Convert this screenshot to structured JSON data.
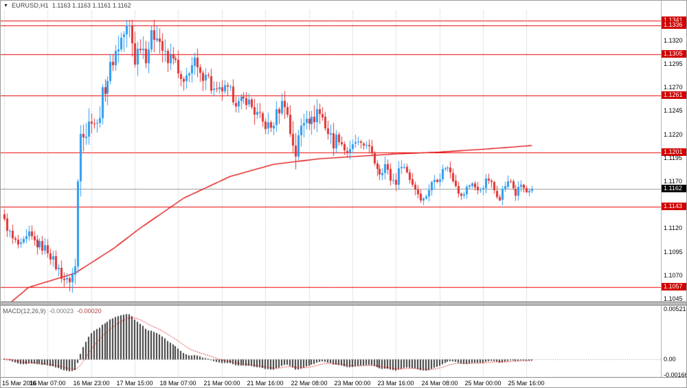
{
  "titlebar": {
    "menu_icon": "▼",
    "symbol": "EURUSD,H1",
    "quote": "1.1163 1.1163 1.1161 1.1162"
  },
  "colors": {
    "bull": "#2d9bef",
    "bear": "#e03333",
    "ma": "#dd0000",
    "level": "#ee0000",
    "level_label_bg": "#d00000",
    "price_label_bg": "#000000",
    "current_line": "#9a9a9a",
    "grid": "#adadad",
    "macd_bar": "#3c3c3c",
    "macd_signal": "#dd0000",
    "axis_text": "#000000"
  },
  "price_axis": {
    "ticks": [
      "1.1320",
      "1.1295",
      "1.1270",
      "1.1245",
      "1.1220",
      "1.1195",
      "1.1170",
      "1.1120",
      "1.1095",
      "1.1070",
      "1.1045"
    ],
    "level_labels": [
      "1.1341",
      "1.1336",
      "1.1305",
      "1.1261",
      "1.1201",
      "1.1143",
      "1.1057"
    ],
    "current_label": "1.1162"
  },
  "time_axis": {
    "labels": [
      "15 Mar 2016",
      "16 Mar 07:00",
      "16 Mar 23:00",
      "17 Mar 15:00",
      "18 Mar 07:00",
      "21 Mar 00:00",
      "21 Mar 16:00",
      "22 Mar 08:00",
      "23 Mar 00:00",
      "23 Mar 16:00",
      "24 Mar 08:00",
      "25 Mar 00:00",
      "25 Mar 16:00"
    ]
  },
  "macd_panel": {
    "label": "MACD(12,26,9)",
    "value_main": "-0.00023",
    "value_signal": "-0.00020",
    "axis": [
      "0.00521",
      "0.00",
      "-0.00166"
    ]
  },
  "chart_data": {
    "type": "candlestick",
    "symbol": "EURUSD",
    "timeframe": "H1",
    "open_high_low_close_current": [
      1.1163,
      1.1163,
      1.1161,
      1.1162
    ],
    "current_price": 1.1162,
    "price_range": [
      1.1042,
      1.1352
    ],
    "candle_count": 195,
    "bars_per_label": 16,
    "horizontal_levels": [
      1.1341,
      1.1336,
      1.1305,
      1.1261,
      1.1201,
      1.1143,
      1.1057
    ],
    "close_keypoints": [
      [
        0,
        1.1127
      ],
      [
        3,
        1.1108
      ],
      [
        6,
        1.11
      ],
      [
        9,
        1.1112
      ],
      [
        12,
        1.1103
      ],
      [
        16,
        1.1097
      ],
      [
        19,
        1.108
      ],
      [
        23,
        1.1062
      ],
      [
        25,
        1.107
      ],
      [
        26,
        1.1078
      ],
      [
        27,
        1.117
      ],
      [
        28,
        1.123
      ],
      [
        30,
        1.1222
      ],
      [
        32,
        1.124
      ],
      [
        34,
        1.1228
      ],
      [
        36,
        1.1262
      ],
      [
        38,
        1.128
      ],
      [
        40,
        1.13
      ],
      [
        43,
        1.1322
      ],
      [
        46,
        1.1336
      ],
      [
        48,
        1.13
      ],
      [
        50,
        1.1318
      ],
      [
        52,
        1.1305
      ],
      [
        54,
        1.1322
      ],
      [
        56,
        1.133
      ],
      [
        58,
        1.131
      ],
      [
        60,
        1.1295
      ],
      [
        62,
        1.1306
      ],
      [
        64,
        1.1282
      ],
      [
        66,
        1.127
      ],
      [
        68,
        1.129
      ],
      [
        70,
        1.1296
      ],
      [
        72,
        1.128
      ],
      [
        74,
        1.1288
      ],
      [
        76,
        1.127
      ],
      [
        78,
        1.1262
      ],
      [
        80,
        1.1268
      ],
      [
        83,
        1.1264
      ],
      [
        86,
        1.1252
      ],
      [
        89,
        1.1258
      ],
      [
        92,
        1.1244
      ],
      [
        95,
        1.1232
      ],
      [
        98,
        1.1226
      ],
      [
        101,
        1.1248
      ],
      [
        103,
        1.1256
      ],
      [
        105,
        1.1222
      ],
      [
        107,
        1.12
      ],
      [
        109,
        1.1228
      ],
      [
        111,
        1.1244
      ],
      [
        113,
        1.1232
      ],
      [
        115,
        1.1246
      ],
      [
        117,
        1.1238
      ],
      [
        119,
        1.1222
      ],
      [
        121,
        1.1212
      ],
      [
        123,
        1.1218
      ],
      [
        125,
        1.1204
      ],
      [
        127,
        1.12
      ],
      [
        129,
        1.1212
      ],
      [
        131,
        1.1205
      ],
      [
        133,
        1.1212
      ],
      [
        135,
        1.1196
      ],
      [
        138,
        1.118
      ],
      [
        140,
        1.1188
      ],
      [
        142,
        1.1172
      ],
      [
        144,
        1.117
      ],
      [
        146,
        1.119
      ],
      [
        148,
        1.118
      ],
      [
        150,
        1.1168
      ],
      [
        152,
        1.1158
      ],
      [
        154,
        1.115
      ],
      [
        156,
        1.1162
      ],
      [
        158,
        1.1172
      ],
      [
        160,
        1.1176
      ],
      [
        162,
        1.1186
      ],
      [
        164,
        1.118
      ],
      [
        166,
        1.1168
      ],
      [
        168,
        1.1152
      ],
      [
        170,
        1.1162
      ],
      [
        172,
        1.117
      ],
      [
        174,
        1.1158
      ],
      [
        176,
        1.1166
      ],
      [
        178,
        1.1172
      ],
      [
        180,
        1.116
      ],
      [
        182,
        1.1154
      ],
      [
        184,
        1.1166
      ],
      [
        186,
        1.117
      ],
      [
        188,
        1.1156
      ],
      [
        190,
        1.1166
      ],
      [
        192,
        1.1158
      ],
      [
        194,
        1.1162
      ]
    ],
    "volatility_keypoints": [
      [
        0,
        0.9
      ],
      [
        20,
        1.0
      ],
      [
        26,
        1.4
      ],
      [
        28,
        2.0
      ],
      [
        34,
        1.5
      ],
      [
        46,
        1.9
      ],
      [
        60,
        1.5
      ],
      [
        80,
        1.2
      ],
      [
        100,
        1.3
      ],
      [
        107,
        1.8
      ],
      [
        117,
        1.5
      ],
      [
        130,
        1.0
      ],
      [
        150,
        0.9
      ],
      [
        170,
        0.8
      ],
      [
        194,
        0.7
      ]
    ],
    "ma_keypoints": [
      [
        0,
        1.1035
      ],
      [
        9,
        1.1057
      ],
      [
        26,
        1.1072
      ],
      [
        40,
        1.1098
      ],
      [
        50,
        1.112
      ],
      [
        66,
        1.1152
      ],
      [
        83,
        1.1175
      ],
      [
        99,
        1.1188
      ],
      [
        116,
        1.1194
      ],
      [
        127,
        1.1196
      ],
      [
        143,
        1.1199
      ],
      [
        160,
        1.1201
      ],
      [
        176,
        1.1204
      ],
      [
        194,
        1.1208
      ]
    ],
    "macd": {
      "fast": 12,
      "slow": 26,
      "signal": 9,
      "current_macd": -0.00023,
      "current_signal": -0.0002,
      "display_range": [
        -0.0019,
        0.0056
      ],
      "axis_ticks": [
        0.00521,
        0.0,
        -0.00166
      ],
      "peak_value": 0.0047
    }
  }
}
